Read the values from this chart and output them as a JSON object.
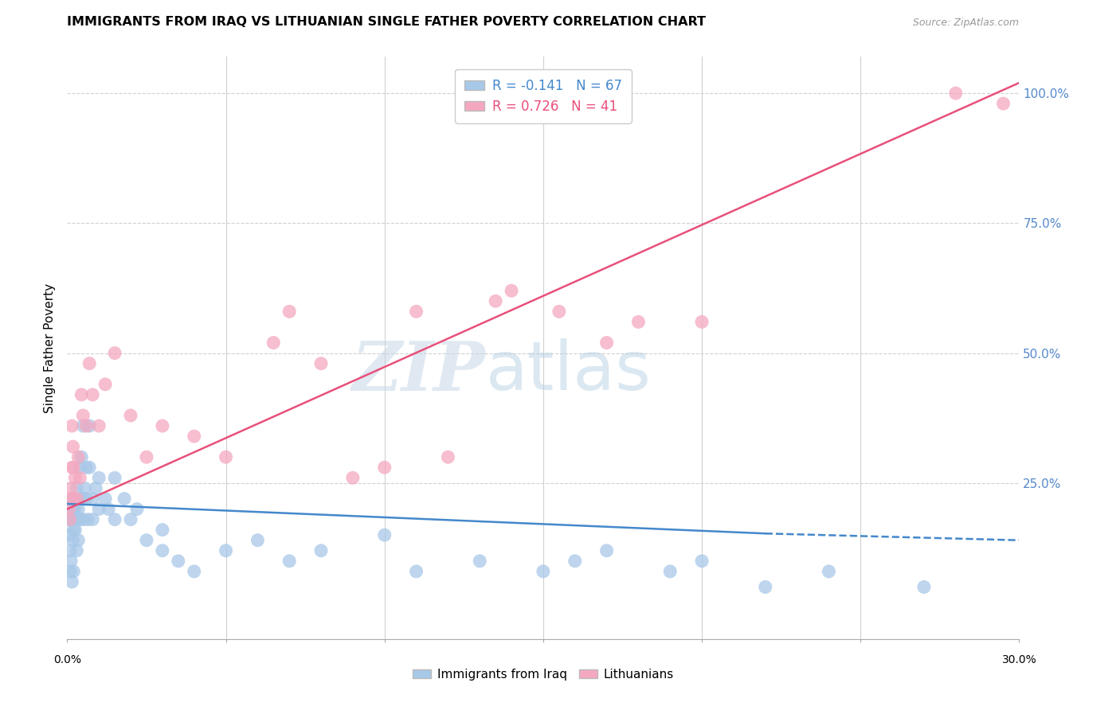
{
  "title": "IMMIGRANTS FROM IRAQ VS LITHUANIAN SINGLE FATHER POVERTY CORRELATION CHART",
  "source": "Source: ZipAtlas.com",
  "ylabel": "Single Father Poverty",
  "legend_iraq": "Immigrants from Iraq",
  "legend_lit": "Lithuanians",
  "R_iraq": -0.141,
  "N_iraq": 67,
  "R_lit": 0.726,
  "N_lit": 41,
  "color_iraq": "#a8c8e8",
  "color_lit": "#f4a8c0",
  "color_trendline_iraq": "#4488cc",
  "color_trendline_lit": "#e8507a",
  "color_right_axis": "#5588cc",
  "iraq_x": [
    0.05,
    0.05,
    0.08,
    0.1,
    0.1,
    0.12,
    0.15,
    0.15,
    0.15,
    0.18,
    0.2,
    0.2,
    0.2,
    0.22,
    0.25,
    0.25,
    0.25,
    0.3,
    0.3,
    0.3,
    0.35,
    0.35,
    0.4,
    0.4,
    0.4,
    0.45,
    0.5,
    0.5,
    0.5,
    0.55,
    0.6,
    0.6,
    0.65,
    0.7,
    0.7,
    0.8,
    0.8,
    0.9,
    1.0,
    1.0,
    1.2,
    1.3,
    1.5,
    1.5,
    1.8,
    2.0,
    2.2,
    2.5,
    3.0,
    3.0,
    3.5,
    4.0,
    5.0,
    6.0,
    7.0,
    8.0,
    10.0,
    11.0,
    13.0,
    15.0,
    16.0,
    17.0,
    19.0,
    20.0,
    22.0,
    24.0,
    27.0
  ],
  "iraq_y": [
    18.0,
    20.0,
    15.0,
    12.0,
    8.0,
    10.0,
    22.0,
    18.0,
    6.0,
    14.0,
    20.0,
    16.0,
    8.0,
    18.0,
    22.0,
    20.0,
    16.0,
    24.0,
    18.0,
    12.0,
    20.0,
    14.0,
    22.0,
    28.0,
    18.0,
    30.0,
    36.0,
    22.0,
    18.0,
    24.0,
    28.0,
    22.0,
    18.0,
    36.0,
    28.0,
    22.0,
    18.0,
    24.0,
    20.0,
    26.0,
    22.0,
    20.0,
    18.0,
    26.0,
    22.0,
    18.0,
    20.0,
    14.0,
    12.0,
    16.0,
    10.0,
    8.0,
    12.0,
    14.0,
    10.0,
    12.0,
    15.0,
    8.0,
    10.0,
    8.0,
    10.0,
    12.0,
    8.0,
    10.0,
    5.0,
    8.0,
    5.0
  ],
  "lit_x": [
    0.05,
    0.08,
    0.1,
    0.12,
    0.15,
    0.15,
    0.18,
    0.2,
    0.2,
    0.25,
    0.3,
    0.35,
    0.4,
    0.45,
    0.5,
    0.6,
    0.7,
    0.8,
    1.0,
    1.2,
    1.5,
    2.0,
    2.5,
    3.0,
    4.0,
    5.0,
    6.5,
    7.0,
    8.0,
    9.0,
    10.0,
    11.0,
    12.0,
    13.5,
    14.0,
    15.5,
    17.0,
    18.0,
    20.0,
    28.0,
    29.5
  ],
  "lit_y": [
    20.0,
    18.0,
    22.0,
    24.0,
    36.0,
    28.0,
    32.0,
    22.0,
    28.0,
    26.0,
    22.0,
    30.0,
    26.0,
    42.0,
    38.0,
    36.0,
    48.0,
    42.0,
    36.0,
    44.0,
    50.0,
    38.0,
    30.0,
    36.0,
    34.0,
    30.0,
    52.0,
    58.0,
    48.0,
    26.0,
    28.0,
    58.0,
    30.0,
    60.0,
    62.0,
    58.0,
    52.0,
    56.0,
    56.0,
    100.0,
    98.0
  ],
  "lit_trend_x0": 0.0,
  "lit_trend_y0": 20.0,
  "lit_trend_x1": 30.0,
  "lit_trend_y1": 102.0,
  "iraq_trend_x0": 0.0,
  "iraq_trend_y0": 21.0,
  "iraq_trend_x1": 27.0,
  "iraq_trend_y1": 14.0,
  "xmin": 0.0,
  "xmax": 30.0,
  "ymin": -5.0,
  "ymax": 107.0,
  "watermark_zip": "ZIP",
  "watermark_atlas": "atlas"
}
